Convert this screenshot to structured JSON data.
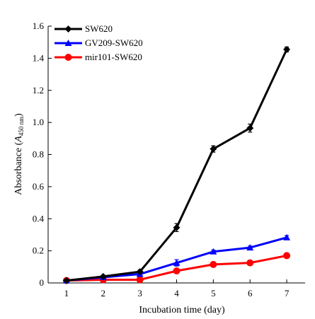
{
  "chart_data": {
    "type": "line",
    "x": [
      1,
      2,
      3,
      4,
      5,
      6,
      7
    ],
    "xlim": [
      0.5,
      7.5
    ],
    "ylim": [
      0,
      1.6
    ],
    "x_ticks": [
      "1",
      "2",
      "3",
      "4",
      "5",
      "6",
      "7"
    ],
    "y_ticks": [
      "0",
      "0.2",
      "0.4",
      "0.6",
      "0.8",
      "1.0",
      "1.2",
      "1.4",
      "1.6"
    ],
    "xlabel": "Incubation time (day)",
    "ylabel": {
      "prefix": "Absorbance (",
      "symbol": "A",
      "subscript": "450 nm",
      "suffix": ")"
    },
    "legend_position": "top-left",
    "grid": false,
    "series": [
      {
        "name": "SW620",
        "color": "#000000",
        "marker": "diamond",
        "values": [
          0.015,
          0.04,
          0.07,
          0.345,
          0.835,
          0.965,
          1.455
        ],
        "errors": [
          0.005,
          0.008,
          0.01,
          0.025,
          0.02,
          0.025,
          0.015
        ]
      },
      {
        "name": "GV209-SW620",
        "color": "#0000ff",
        "marker": "triangle",
        "values": [
          0.015,
          0.035,
          0.055,
          0.125,
          0.195,
          0.22,
          0.283
        ],
        "errors": [
          0.003,
          0.005,
          0.008,
          0.02,
          0.01,
          0.01,
          0.012
        ]
      },
      {
        "name": "mir101-SW620",
        "color": "#ff0000",
        "marker": "circle",
        "values": [
          0.015,
          0.02,
          0.02,
          0.075,
          0.115,
          0.125,
          0.17
        ],
        "errors": [
          0.003,
          0.003,
          0.003,
          0.01,
          0.008,
          0.008,
          0.01
        ]
      }
    ]
  }
}
